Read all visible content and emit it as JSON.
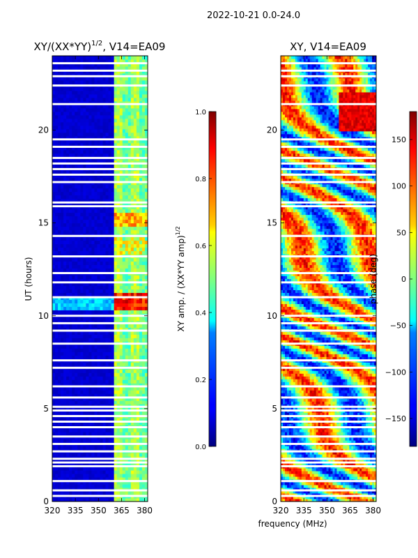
{
  "figure": {
    "suptitle": "2022-10-21 0.0-24.0",
    "xlabel": "frequency (MHz)",
    "ylabel": "UT (hours)"
  },
  "chart_data": [
    {
      "type": "heatmap",
      "title": "XY/(XX*YY)",
      "title_exp": "1/2",
      "title_suffix": ", V14=EA09",
      "xlabel": "frequency (MHz)",
      "ylabel": "UT (hours)",
      "xlim": [
        320,
        382
      ],
      "ylim": [
        0,
        24
      ],
      "xticks": [
        320,
        335,
        350,
        365,
        380
      ],
      "yticks": [
        0,
        5,
        10,
        15,
        20
      ],
      "colorbar": {
        "label": "XY amp. / (XX*YY amp)",
        "label_exp": "1/2",
        "range": [
          0.0,
          1.0
        ],
        "ticks": [
          "0.0",
          "0.2",
          "0.4",
          "0.6",
          "0.8",
          "1.0"
        ],
        "colormap": "jet"
      },
      "bright_band_MHz": [
        361,
        382
      ],
      "flagged_hours": [
        0.3,
        0.6,
        1.1,
        1.9,
        2.1,
        2.3,
        2.7,
        3.1,
        3.5,
        4.0,
        4.3,
        4.6,
        4.9,
        5.1,
        5.6,
        6.2,
        7.2,
        7.6,
        8.5,
        9.2,
        9.6,
        10.0,
        11.0,
        11.8,
        12.3,
        13.2,
        14.3,
        15.9,
        16.1,
        17.2,
        17.6,
        17.9,
        18.2,
        18.5,
        19.1,
        19.5,
        21.4,
        22.4,
        22.9,
        23.2,
        23.6
      ],
      "flag_color": "#ffffff"
    },
    {
      "type": "heatmap",
      "title": "XY, V14=EA09",
      "xlabel": "frequency (MHz)",
      "ylabel": "",
      "xlim": [
        320,
        382
      ],
      "ylim": [
        0,
        24
      ],
      "xticks": [
        320,
        335,
        350,
        365,
        380
      ],
      "yticks": [
        0,
        5,
        10,
        15,
        20
      ],
      "colorbar": {
        "label": "phase (deg)",
        "range": [
          -180,
          180
        ],
        "ticks": [
          "−150",
          "−100",
          "−50",
          "0",
          "50",
          "100",
          "150"
        ],
        "tick_values": [
          -150,
          -100,
          -50,
          0,
          50,
          100,
          150
        ],
        "colormap": "jet"
      },
      "flagged_hours": [
        0.3,
        0.6,
        1.1,
        1.9,
        2.1,
        2.3,
        2.7,
        3.1,
        3.5,
        4.0,
        4.3,
        4.6,
        4.9,
        5.1,
        5.6,
        6.2,
        7.2,
        7.6,
        8.5,
        9.2,
        9.6,
        10.0,
        11.0,
        11.8,
        12.3,
        13.2,
        14.3,
        15.9,
        16.1,
        17.2,
        17.6,
        17.9,
        18.2,
        18.5,
        19.1,
        19.5,
        21.4,
        22.4,
        22.9,
        23.2,
        23.6
      ],
      "flag_color": "#ffffff"
    }
  ]
}
